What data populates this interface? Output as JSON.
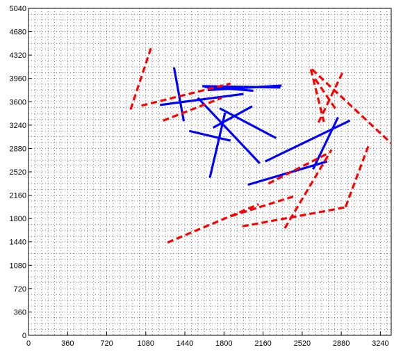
{
  "chart_data": {
    "type": "line",
    "title": "",
    "xlabel": "",
    "ylabel": "",
    "xlim": [
      0,
      3340
    ],
    "ylim": [
      0,
      5040
    ],
    "xticks": [
      0,
      360,
      720,
      1080,
      1440,
      1800,
      2160,
      2520,
      2880,
      3240
    ],
    "yticks": [
      0,
      360,
      720,
      1080,
      1440,
      1800,
      2160,
      2520,
      2880,
      3240,
      3600,
      3960,
      4320,
      4680,
      5040
    ],
    "xtick_labels": [
      "0",
      "360",
      "720",
      "1080",
      "1440",
      "1800",
      "2160",
      "2520",
      "2880",
      "3240"
    ],
    "ytick_labels": [
      "0",
      "360",
      "720",
      "1080",
      "1440",
      "1800",
      "2160",
      "2520",
      "2880",
      "3240",
      "3600",
      "3960",
      "4320",
      "4680",
      "5040"
    ],
    "grid": true,
    "grid_style": "dotted",
    "series": [
      {
        "color": "#0000ff",
        "style": "solid",
        "segments": [
          [
            [
              1340,
              4130
            ],
            [
              1430,
              3300
            ]
          ],
          [
            [
              1210,
              3550
            ],
            [
              1980,
              3720
            ]
          ],
          [
            [
              1620,
              3830
            ],
            [
              2070,
              3770
            ]
          ],
          [
            [
              1600,
              3840
            ],
            [
              2320,
              3820
            ]
          ],
          [
            [
              1480,
              3150
            ],
            [
              1860,
              3000
            ]
          ],
          [
            [
              1650,
              3780
            ],
            [
              2330,
              3850
            ]
          ],
          [
            [
              1560,
              3660
            ],
            [
              2130,
              2650
            ]
          ],
          [
            [
              1760,
              3500
            ],
            [
              2280,
              3040
            ]
          ],
          [
            [
              1670,
              2430
            ],
            [
              1810,
              3430
            ]
          ],
          [
            [
              1700,
              3200
            ],
            [
              2060,
              3530
            ]
          ],
          [
            [
              2020,
              2320
            ],
            [
              2750,
              2680
            ]
          ],
          [
            [
              2180,
              2680
            ],
            [
              2960,
              3310
            ]
          ],
          [
            [
              2620,
              2560
            ],
            [
              2850,
              3360
            ]
          ]
        ]
      },
      {
        "color": "#ff0000",
        "style": "dashed",
        "segments": [
          [
            [
              940,
              3480
            ],
            [
              1130,
              4440
            ]
          ],
          [
            [
              1040,
              3540
            ],
            [
              1860,
              3880
            ]
          ],
          [
            [
              1240,
              3310
            ],
            [
              1780,
              3660
            ]
          ],
          [
            [
              1280,
              1430
            ],
            [
              2120,
              2020
            ]
          ],
          [
            [
              1870,
              1840
            ],
            [
              2440,
              2140
            ]
          ],
          [
            [
              1970,
              1680
            ],
            [
              2910,
              1970
            ]
          ],
          [
            [
              2360,
              1650
            ],
            [
              2790,
              2860
            ]
          ],
          [
            [
              2600,
              4100
            ],
            [
              2720,
              3290
            ]
          ],
          [
            [
              2610,
              4100
            ],
            [
              3340,
              2960
            ]
          ],
          [
            [
              2920,
              1980
            ],
            [
              3130,
              2920
            ]
          ],
          [
            [
              2670,
              3280
            ],
            [
              2900,
              4080
            ]
          ],
          [
            [
              2640,
              3950
            ],
            [
              2840,
              3460
            ]
          ],
          [
            [
              2210,
              2340
            ],
            [
              2740,
              2790
            ]
          ]
        ]
      }
    ]
  }
}
